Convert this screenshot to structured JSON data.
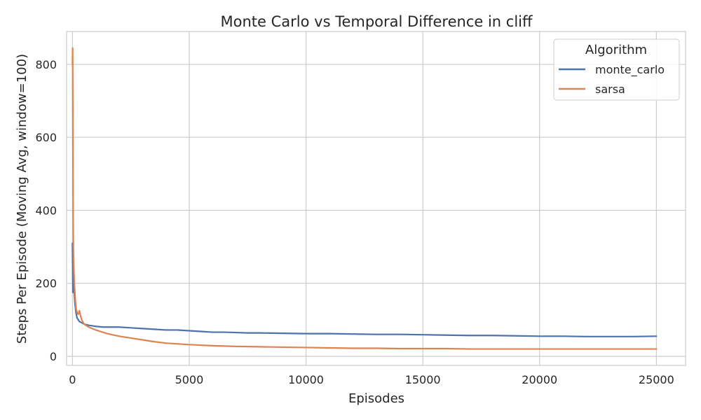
{
  "chart_data": {
    "type": "line",
    "title": "Monte Carlo vs Temporal Difference in cliff",
    "xlabel": "Episodes",
    "ylabel": "Steps Per Episode (Moving Avg, window=100)",
    "xlim": [
      -250,
      26250
    ],
    "ylim": [
      -25,
      890
    ],
    "x_ticks": [
      0,
      5000,
      10000,
      15000,
      20000,
      25000
    ],
    "y_ticks": [
      0,
      200,
      400,
      600,
      800
    ],
    "grid": true,
    "legend": {
      "title": "Algorithm",
      "placement": "top-right"
    },
    "series": [
      {
        "name": "monte_carlo",
        "color": "#4c72b0",
        "x": [
          0,
          20,
          40,
          60,
          80,
          100,
          150,
          200,
          300,
          400,
          500,
          700,
          1000,
          1300,
          1600,
          2000,
          2500,
          3000,
          3500,
          4000,
          4500,
          5000,
          5500,
          6000,
          6500,
          7000,
          7500,
          8000,
          9000,
          10000,
          11000,
          12000,
          13000,
          14000,
          15000,
          16000,
          17000,
          18000,
          19000,
          20000,
          21000,
          22000,
          23000,
          24000,
          25000
        ],
        "values": [
          310,
          175,
          260,
          200,
          170,
          150,
          120,
          105,
          95,
          92,
          88,
          85,
          82,
          80,
          80,
          80,
          78,
          76,
          74,
          72,
          72,
          70,
          68,
          66,
          66,
          65,
          64,
          64,
          63,
          62,
          62,
          61,
          60,
          60,
          59,
          58,
          57,
          57,
          56,
          55,
          55,
          54,
          54,
          54,
          55
        ]
      },
      {
        "name": "sarsa",
        "color": "#dd8452",
        "x": [
          0,
          10,
          20,
          30,
          40,
          60,
          80,
          100,
          130,
          160,
          200,
          250,
          300,
          350,
          400,
          500,
          700,
          1000,
          1500,
          2000,
          2500,
          3000,
          3500,
          4000,
          5000,
          6000,
          7000,
          8000,
          9000,
          10000,
          11000,
          12000,
          13000,
          14000,
          15000,
          16000,
          17000,
          18000,
          19000,
          20000,
          21000,
          22000,
          23000,
          24000,
          25000
        ],
        "values": [
          800,
          845,
          600,
          385,
          300,
          240,
          200,
          180,
          150,
          130,
          120,
          115,
          125,
          110,
          100,
          88,
          80,
          72,
          62,
          55,
          50,
          45,
          40,
          36,
          32,
          29,
          27,
          26,
          25,
          24,
          23,
          22,
          22,
          21,
          21,
          21,
          20,
          20,
          20,
          20,
          20,
          20,
          20,
          20,
          20
        ]
      }
    ]
  }
}
